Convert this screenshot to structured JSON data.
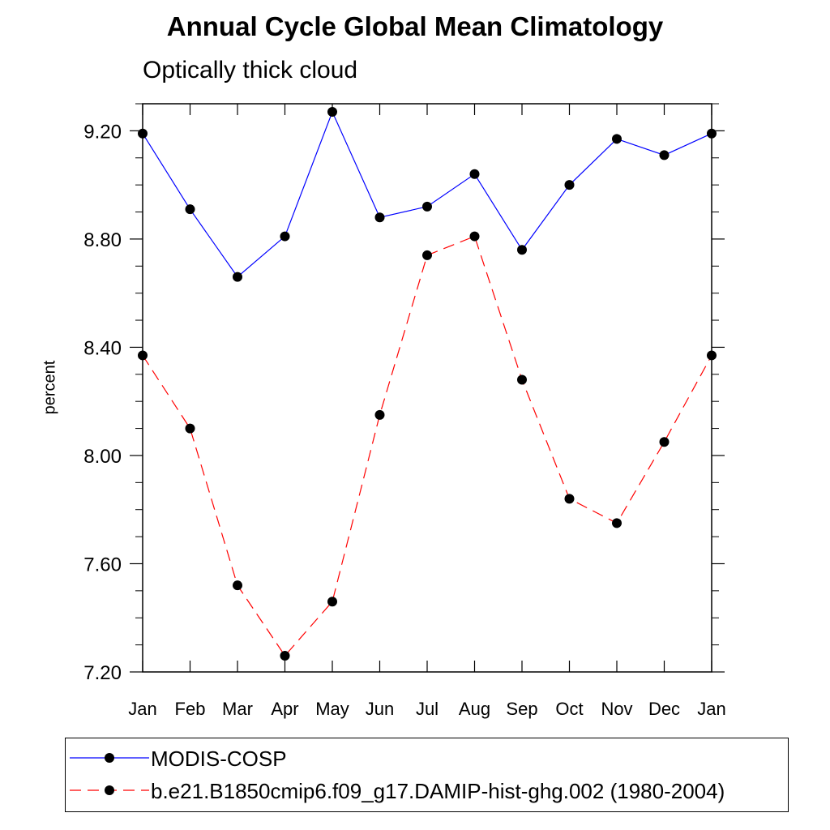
{
  "chart_data": {
    "type": "line",
    "title": "Annual Cycle Global Mean Climatology",
    "subtitle": "Optically thick cloud",
    "xlabel": "",
    "ylabel": "percent",
    "categories": [
      "Jan",
      "Feb",
      "Mar",
      "Apr",
      "May",
      "Jun",
      "Jul",
      "Aug",
      "Sep",
      "Oct",
      "Nov",
      "Dec",
      "Jan"
    ],
    "ylim": [
      7.2,
      9.3
    ],
    "yticks": [
      7.2,
      7.6,
      8.0,
      8.4,
      8.8,
      9.2
    ],
    "ytick_labels": [
      "7.20",
      "7.60",
      "8.00",
      "8.40",
      "8.80",
      "9.20"
    ],
    "grid": false,
    "legend_position": "bottom",
    "series": [
      {
        "name": "MODIS-COSP",
        "color": "#0000ff",
        "dash": "solid",
        "values": [
          9.19,
          8.91,
          8.66,
          8.81,
          9.27,
          8.88,
          8.92,
          9.04,
          8.76,
          9.0,
          9.17,
          9.11,
          9.19
        ]
      },
      {
        "name": "b.e21.B1850cmip6.f09_g17.DAMIP-hist-ghg.002 (1980-2004)",
        "color": "#ff0000",
        "dash": "dashed",
        "values": [
          8.37,
          8.1,
          7.52,
          7.26,
          7.46,
          8.15,
          8.74,
          8.81,
          8.28,
          7.84,
          7.75,
          8.05,
          8.37
        ]
      }
    ]
  }
}
